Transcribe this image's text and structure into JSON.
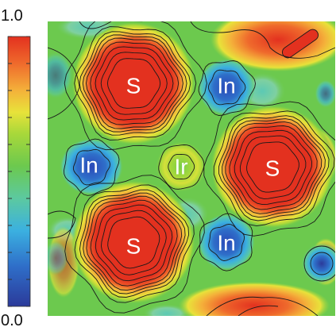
{
  "chart_data": {
    "type": "heatmap",
    "title": "",
    "xlabel": "",
    "ylabel": "",
    "colorbar": {
      "min_label": "0.0",
      "max_label": "1.0",
      "range": [
        0.0,
        1.0
      ],
      "orientation": "vertical",
      "ticks": [
        0.0,
        0.1,
        0.2,
        0.3,
        0.4,
        0.5,
        0.6,
        0.7,
        0.8,
        0.9,
        1.0
      ],
      "colors": [
        "#2b3a9a",
        "#2f6fc9",
        "#3bb0e0",
        "#5cc9a0",
        "#6cc94e",
        "#a8d83a",
        "#e8e23a",
        "#f4b13a",
        "#ef6a2c",
        "#e3311f"
      ]
    },
    "contour_lines": true,
    "atoms": [
      {
        "label": "S",
        "value": 1.0
      },
      {
        "label": "S",
        "value": 1.0
      },
      {
        "label": "S",
        "value": 1.0
      },
      {
        "label": "In",
        "value": 0.08
      },
      {
        "label": "In",
        "value": 0.08
      },
      {
        "label": "In",
        "value": 0.08
      },
      {
        "label": "Ir",
        "value": 0.55
      }
    ],
    "background_value": 0.45
  }
}
